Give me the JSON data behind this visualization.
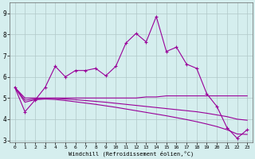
{
  "xlabel": "Windchill (Refroidissement éolien,°C)",
  "x": [
    0,
    1,
    2,
    3,
    4,
    5,
    6,
    7,
    8,
    9,
    10,
    11,
    12,
    13,
    14,
    15,
    16,
    17,
    18,
    19,
    20,
    21,
    22,
    23
  ],
  "line1": [
    5.5,
    4.35,
    4.9,
    5.5,
    6.5,
    6.0,
    6.3,
    6.3,
    6.4,
    6.05,
    6.5,
    7.6,
    8.05,
    7.65,
    8.85,
    7.2,
    7.4,
    6.6,
    6.4,
    5.2,
    4.6,
    3.6,
    3.1,
    3.5
  ],
  "line2": [
    5.5,
    5.0,
    5.0,
    5.0,
    5.0,
    5.0,
    5.0,
    5.0,
    5.0,
    5.0,
    5.0,
    5.0,
    5.0,
    5.05,
    5.05,
    5.1,
    5.1,
    5.1,
    5.1,
    5.1,
    5.1,
    5.1,
    5.1,
    5.1
  ],
  "line3": [
    5.5,
    4.9,
    4.95,
    4.98,
    4.98,
    4.95,
    4.92,
    4.88,
    4.84,
    4.8,
    4.75,
    4.7,
    4.65,
    4.6,
    4.55,
    4.5,
    4.45,
    4.4,
    4.35,
    4.28,
    4.2,
    4.12,
    4.0,
    3.95
  ],
  "line4": [
    5.5,
    4.8,
    4.92,
    4.95,
    4.93,
    4.88,
    4.82,
    4.76,
    4.7,
    4.63,
    4.56,
    4.48,
    4.4,
    4.32,
    4.24,
    4.16,
    4.07,
    3.98,
    3.88,
    3.77,
    3.65,
    3.5,
    3.3,
    3.28
  ],
  "line_color": "#990099",
  "bg_color": "#d5eeee",
  "grid_color": "#b0c8c8",
  "ylim": [
    2.9,
    9.5
  ],
  "yticks": [
    3,
    4,
    5,
    6,
    7,
    8,
    9
  ],
  "xticks": [
    0,
    1,
    2,
    3,
    4,
    5,
    6,
    7,
    8,
    9,
    10,
    11,
    12,
    13,
    14,
    15,
    16,
    17,
    18,
    19,
    20,
    21,
    22,
    23
  ]
}
